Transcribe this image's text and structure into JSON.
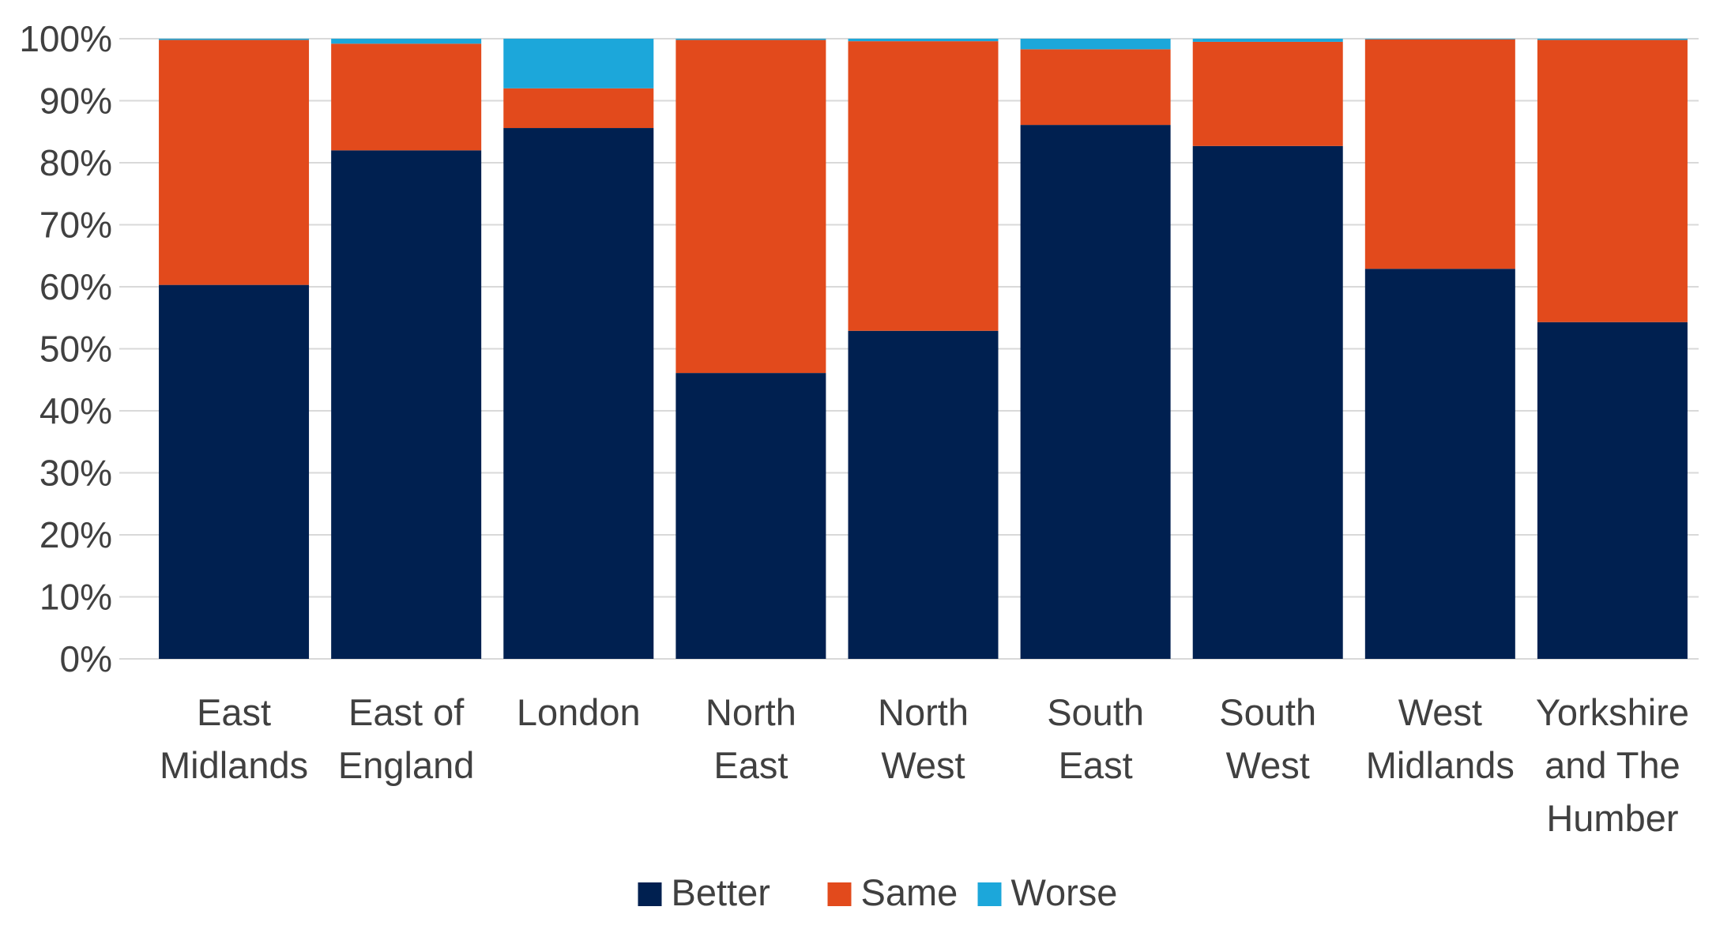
{
  "chart_data": {
    "type": "bar",
    "stacked": true,
    "percent": true,
    "categories": [
      [
        "East",
        "Midlands"
      ],
      [
        "East of",
        "England"
      ],
      [
        "London"
      ],
      [
        "North",
        "East"
      ],
      [
        "North",
        "West"
      ],
      [
        "South",
        "East"
      ],
      [
        "South",
        "West"
      ],
      [
        "West",
        "Midlands"
      ],
      [
        "Yorkshire",
        "and The",
        "Humber"
      ]
    ],
    "series": [
      {
        "name": "Better",
        "color": "#002050",
        "values": [
          60.3,
          82.0,
          85.6,
          46.1,
          52.9,
          86.1,
          82.7,
          62.9,
          54.3
        ]
      },
      {
        "name": "Same",
        "color": "#E24A1C",
        "values": [
          39.5,
          17.2,
          6.4,
          53.7,
          46.7,
          12.2,
          16.8,
          37.0,
          45.5
        ]
      },
      {
        "name": "Worse",
        "color": "#1CA7DA",
        "values": [
          0.2,
          0.8,
          8.0,
          0.2,
          0.4,
          1.7,
          0.5,
          0.1,
          0.2
        ]
      }
    ],
    "yticks": [
      "0%",
      "10%",
      "20%",
      "30%",
      "40%",
      "50%",
      "60%",
      "70%",
      "80%",
      "90%",
      "100%"
    ],
    "ylim": [
      0,
      100
    ],
    "grid": true,
    "legend_position": "bottom",
    "title": "",
    "xlabel": "",
    "ylabel": ""
  }
}
